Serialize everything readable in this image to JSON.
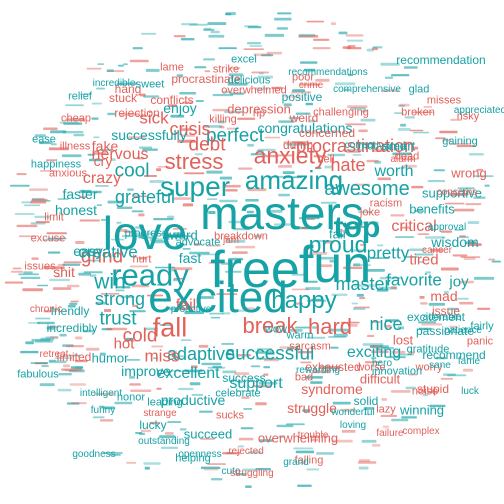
{
  "colors": {
    "teal": "#17a2a6",
    "coral": "#e2615b"
  },
  "words": [
    {
      "text": "free",
      "color": "teal"
    },
    {
      "text": "fun",
      "color": "teal"
    },
    {
      "text": "masters",
      "color": "teal"
    },
    {
      "text": "love",
      "color": "teal"
    },
    {
      "text": "excited",
      "color": "teal"
    },
    {
      "text": "ready",
      "color": "teal"
    },
    {
      "text": "super",
      "color": "teal"
    },
    {
      "text": "amazing",
      "color": "teal"
    },
    {
      "text": "stress",
      "color": "coral"
    },
    {
      "text": "anxiety",
      "color": "coral"
    },
    {
      "text": "fall",
      "color": "coral"
    },
    {
      "text": "top",
      "color": "teal"
    },
    {
      "text": "break",
      "color": "coral"
    },
    {
      "text": "happy",
      "color": "teal"
    },
    {
      "text": "proud",
      "color": "teal"
    },
    {
      "text": "hard",
      "color": "coral"
    },
    {
      "text": "master",
      "color": "teal"
    },
    {
      "text": "successful",
      "color": "teal"
    },
    {
      "text": "adaptive",
      "color": "teal"
    },
    {
      "text": "perfect",
      "color": "teal"
    },
    {
      "text": "win",
      "color": "teal"
    },
    {
      "text": "grind",
      "color": "coral"
    },
    {
      "text": "cool",
      "color": "teal"
    },
    {
      "text": "crisis",
      "color": "coral"
    },
    {
      "text": "debt",
      "color": "coral"
    },
    {
      "text": "hate",
      "color": "coral"
    },
    {
      "text": "awesome",
      "color": "teal"
    },
    {
      "text": "grateful",
      "color": "teal"
    },
    {
      "text": "creative",
      "color": "teal"
    },
    {
      "text": "pretty",
      "color": "teal"
    },
    {
      "text": "nice",
      "color": "teal"
    },
    {
      "text": "favorite",
      "color": "teal"
    },
    {
      "text": "miss",
      "color": "coral"
    },
    {
      "text": "cold",
      "color": "coral"
    },
    {
      "text": "trust",
      "color": "teal"
    },
    {
      "text": "strong",
      "color": "teal"
    },
    {
      "text": "procrastination",
      "color": "coral"
    },
    {
      "text": "worth",
      "color": "teal"
    },
    {
      "text": "crazy",
      "color": "coral"
    },
    {
      "text": "nervous",
      "color": "coral"
    },
    {
      "text": "sick",
      "color": "coral"
    },
    {
      "text": "exciting",
      "color": "teal"
    },
    {
      "text": "support",
      "color": "teal"
    },
    {
      "text": "excellent",
      "color": "teal"
    },
    {
      "text": "critical",
      "color": "coral"
    },
    {
      "text": "tired",
      "color": "coral"
    },
    {
      "text": "joy",
      "color": "teal"
    },
    {
      "text": "fail",
      "color": "coral"
    },
    {
      "text": "fast",
      "color": "teal"
    },
    {
      "text": "easy",
      "color": "teal"
    },
    {
      "text": "hot",
      "color": "coral"
    },
    {
      "text": "successfully",
      "color": "teal"
    },
    {
      "text": "congratulations",
      "color": "teal"
    },
    {
      "text": "faster",
      "color": "teal"
    },
    {
      "text": "fake",
      "color": "coral"
    },
    {
      "text": "cry",
      "color": "coral"
    },
    {
      "text": "wisdom",
      "color": "teal"
    },
    {
      "text": "benefits",
      "color": "teal"
    },
    {
      "text": "supportive",
      "color": "teal"
    },
    {
      "text": "struggle",
      "color": "coral"
    },
    {
      "text": "syndrome",
      "color": "coral"
    },
    {
      "text": "humor",
      "color": "teal"
    },
    {
      "text": "productive",
      "color": "teal"
    },
    {
      "text": "honest",
      "color": "teal"
    },
    {
      "text": "award",
      "color": "teal"
    },
    {
      "text": "fair",
      "color": "teal"
    },
    {
      "text": "mad",
      "color": "coral"
    },
    {
      "text": "shit",
      "color": "coral"
    },
    {
      "text": "enjoy",
      "color": "teal"
    },
    {
      "text": "lucky",
      "color": "teal"
    },
    {
      "text": "improve",
      "color": "teal"
    },
    {
      "text": "smart",
      "color": "teal"
    },
    {
      "text": "wrong",
      "color": "coral"
    },
    {
      "text": "lost",
      "color": "coral"
    },
    {
      "text": "recommendation",
      "color": "teal"
    },
    {
      "text": "positive",
      "color": "teal"
    },
    {
      "text": "depression",
      "color": "coral"
    },
    {
      "text": "excitement",
      "color": "teal"
    },
    {
      "text": "passionate",
      "color": "teal"
    },
    {
      "text": "gratitude",
      "color": "teal"
    },
    {
      "text": "success",
      "color": "teal"
    },
    {
      "text": "winning",
      "color": "teal"
    },
    {
      "text": "difficult",
      "color": "coral"
    },
    {
      "text": "stupid",
      "color": "coral"
    },
    {
      "text": "succeed",
      "color": "teal"
    },
    {
      "text": "overwhelming",
      "color": "coral"
    },
    {
      "text": "exhausted",
      "color": "coral"
    },
    {
      "text": "solid",
      "color": "teal"
    },
    {
      "text": "worry",
      "color": "coral"
    },
    {
      "text": "procrastinate",
      "color": "coral"
    },
    {
      "text": "overwhelmed",
      "color": "coral"
    },
    {
      "text": "recommend",
      "color": "teal"
    },
    {
      "text": "issue",
      "color": "coral"
    },
    {
      "text": "weird",
      "color": "coral"
    },
    {
      "text": "rejection",
      "color": "coral"
    },
    {
      "text": "stuck",
      "color": "coral"
    },
    {
      "text": "conflicts",
      "color": "coral"
    },
    {
      "text": "concerned",
      "color": "coral"
    },
    {
      "text": "dumb",
      "color": "coral"
    },
    {
      "text": "hell",
      "color": "coral"
    },
    {
      "text": "cheap",
      "color": "coral"
    },
    {
      "text": "fairly",
      "color": "teal"
    },
    {
      "text": "hang",
      "color": "coral"
    },
    {
      "text": "illness",
      "color": "coral"
    },
    {
      "text": "anxious",
      "color": "coral"
    },
    {
      "text": "happiness",
      "color": "teal"
    },
    {
      "text": "limit",
      "color": "coral"
    },
    {
      "text": "excuse",
      "color": "coral"
    },
    {
      "text": "issues",
      "color": "coral"
    },
    {
      "text": "friendly",
      "color": "teal"
    },
    {
      "text": "incredibly",
      "color": "teal"
    },
    {
      "text": "limited",
      "color": "coral"
    },
    {
      "text": "joke",
      "color": "coral"
    },
    {
      "text": "motivated",
      "color": "teal"
    },
    {
      "text": "hurt",
      "color": "coral"
    },
    {
      "text": "progress",
      "color": "teal"
    },
    {
      "text": "warm",
      "color": "teal"
    },
    {
      "text": "advocate",
      "color": "teal"
    },
    {
      "text": "breakdown",
      "color": "coral"
    },
    {
      "text": "wow",
      "color": "teal"
    },
    {
      "text": "bad",
      "color": "coral"
    },
    {
      "text": "sarcasm",
      "color": "coral"
    },
    {
      "text": "worse",
      "color": "coral"
    },
    {
      "text": "helping",
      "color": "teal"
    },
    {
      "text": "falling",
      "color": "coral"
    },
    {
      "text": "sucks",
      "color": "coral"
    },
    {
      "text": "celebrate",
      "color": "teal"
    },
    {
      "text": "leading",
      "color": "teal"
    },
    {
      "text": "honor",
      "color": "teal"
    },
    {
      "text": "noise",
      "color": "coral"
    },
    {
      "text": "lazy",
      "color": "coral"
    },
    {
      "text": "innovation",
      "color": "teal"
    },
    {
      "text": "fabulous",
      "color": "teal"
    },
    {
      "text": "panic",
      "color": "coral"
    },
    {
      "text": "killing",
      "color": "coral"
    },
    {
      "text": "relief",
      "color": "teal"
    },
    {
      "text": "sweet",
      "color": "teal"
    },
    {
      "text": "lame",
      "color": "coral"
    },
    {
      "text": "excel",
      "color": "teal"
    },
    {
      "text": "delicious",
      "color": "teal"
    },
    {
      "text": "challenging",
      "color": "coral"
    },
    {
      "text": "misses",
      "color": "coral"
    },
    {
      "text": "risky",
      "color": "coral"
    },
    {
      "text": "glad",
      "color": "teal"
    },
    {
      "text": "broken",
      "color": "coral"
    },
    {
      "text": "gaining",
      "color": "teal"
    },
    {
      "text": "dead",
      "color": "coral"
    },
    {
      "text": "racism",
      "color": "coral"
    },
    {
      "text": "ease",
      "color": "teal"
    },
    {
      "text": "poor",
      "color": "coral"
    },
    {
      "text": "strike",
      "color": "coral"
    },
    {
      "text": "rip",
      "color": "coral"
    },
    {
      "text": "jam",
      "color": "coral"
    },
    {
      "text": "proactive",
      "color": "teal"
    },
    {
      "text": "incredible",
      "color": "teal"
    },
    {
      "text": "crime",
      "color": "coral"
    },
    {
      "text": "comprehensive",
      "color": "teal"
    },
    {
      "text": "recommendations",
      "color": "teal"
    },
    {
      "text": "cute",
      "color": "teal"
    },
    {
      "text": "funny",
      "color": "teal"
    },
    {
      "text": "retreat",
      "color": "coral"
    },
    {
      "text": "intelligent",
      "color": "teal"
    },
    {
      "text": "sane",
      "color": "teal"
    },
    {
      "text": "complex",
      "color": "coral"
    },
    {
      "text": "failure",
      "color": "coral"
    },
    {
      "text": "loving",
      "color": "teal"
    },
    {
      "text": "rejected",
      "color": "coral"
    },
    {
      "text": "wonderful",
      "color": "teal"
    },
    {
      "text": "trouble",
      "color": "coral"
    },
    {
      "text": "luck",
      "color": "teal"
    },
    {
      "text": "fame",
      "color": "teal"
    },
    {
      "text": "cancer",
      "color": "coral"
    },
    {
      "text": "chronic",
      "color": "coral"
    },
    {
      "text": "adorable",
      "color": "teal"
    },
    {
      "text": "patience",
      "color": "teal"
    },
    {
      "text": "goodness",
      "color": "teal"
    },
    {
      "text": "outstanding",
      "color": "teal"
    },
    {
      "text": "appreciated",
      "color": "teal"
    },
    {
      "text": "concerns",
      "color": "coral"
    },
    {
      "text": "approval",
      "color": "teal"
    },
    {
      "text": "correct",
      "color": "teal"
    },
    {
      "text": "alarm",
      "color": "coral"
    },
    {
      "text": "hero",
      "color": "teal"
    },
    {
      "text": "rewarding",
      "color": "teal"
    },
    {
      "text": "grand",
      "color": "teal"
    },
    {
      "text": "struggling",
      "color": "coral"
    },
    {
      "text": "strange",
      "color": "coral"
    },
    {
      "text": "openness",
      "color": "teal"
    },
    {
      "text": "impatiently",
      "color": "coral"
    }
  ]
}
